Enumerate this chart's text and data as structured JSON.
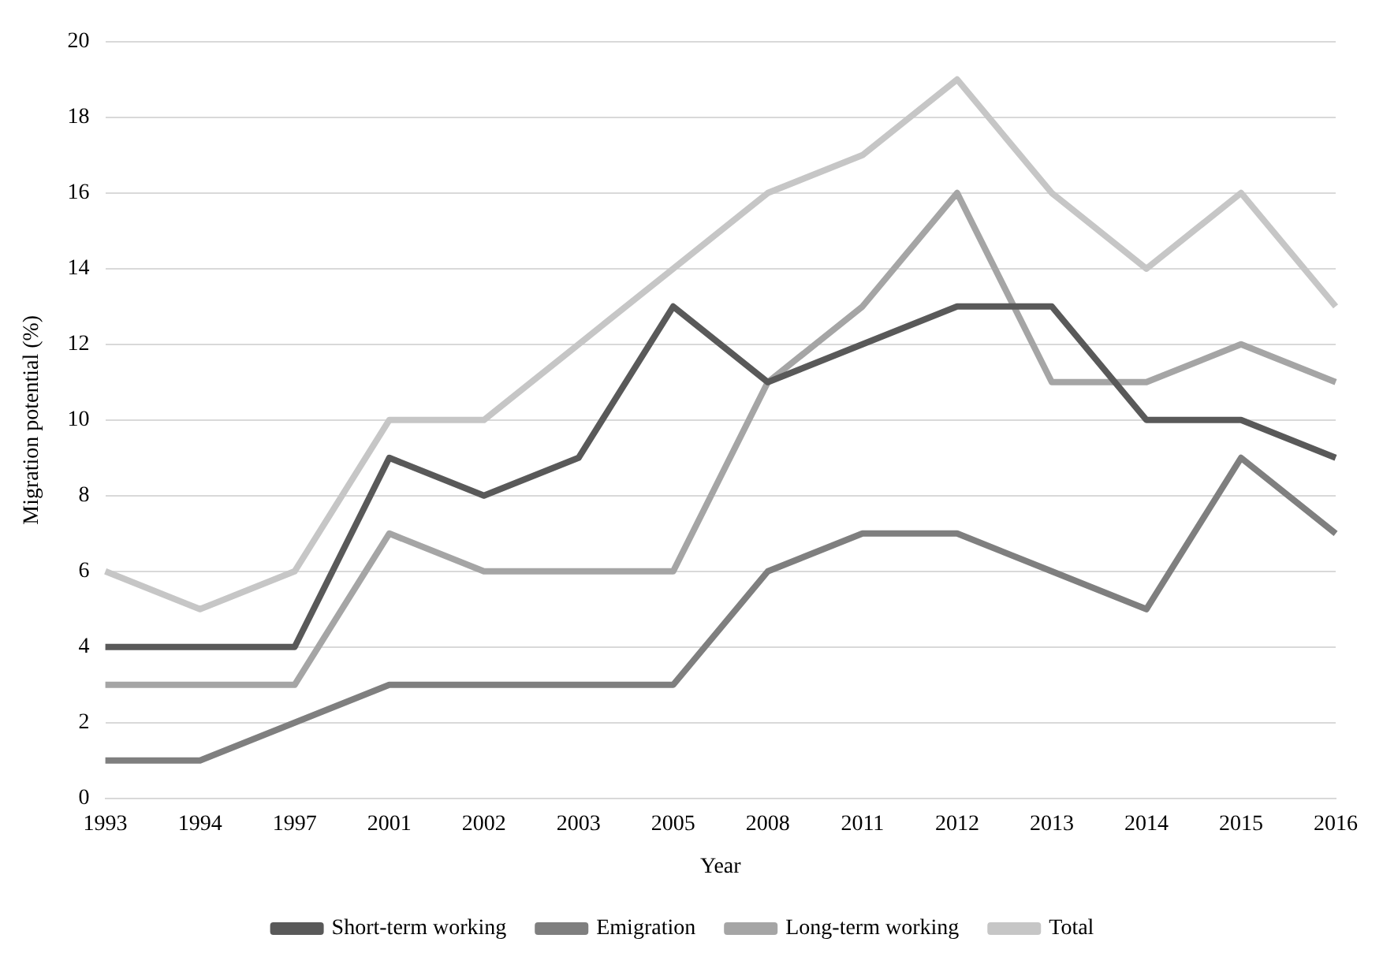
{
  "chart_data": {
    "type": "line",
    "xlabel": "Year",
    "ylabel": "Migration potential (%)",
    "categories": [
      "1993",
      "1994",
      "1997",
      "2001",
      "2002",
      "2003",
      "2005",
      "2008",
      "2011",
      "2012",
      "2013",
      "2014",
      "2015",
      "2016"
    ],
    "series": [
      {
        "name": "Short-term working",
        "color": "#595959",
        "values": [
          4,
          4,
          4,
          9,
          8,
          9,
          13,
          11,
          12,
          13,
          13,
          10,
          10,
          9
        ]
      },
      {
        "name": "Emigration",
        "color": "#7f7f7f",
        "values": [
          1,
          1,
          2,
          3,
          3,
          3,
          3,
          6,
          7,
          7,
          6,
          5,
          9,
          7
        ]
      },
      {
        "name": "Long-term working",
        "color": "#a5a5a5",
        "values": [
          3,
          3,
          3,
          7,
          6,
          6,
          6,
          11,
          13,
          16,
          11,
          11,
          12,
          11
        ]
      },
      {
        "name": "Total",
        "color": "#c6c6c6",
        "values": [
          6,
          5,
          6,
          10,
          10,
          12,
          14,
          16,
          17,
          19,
          16,
          14,
          16,
          13
        ]
      }
    ],
    "ylim": [
      0,
      20
    ],
    "yticks": [
      0,
      2,
      4,
      6,
      8,
      10,
      12,
      14,
      16,
      18,
      20
    ],
    "grid": "y",
    "legend": "bottom",
    "marker": "none",
    "line_style": "solid"
  }
}
